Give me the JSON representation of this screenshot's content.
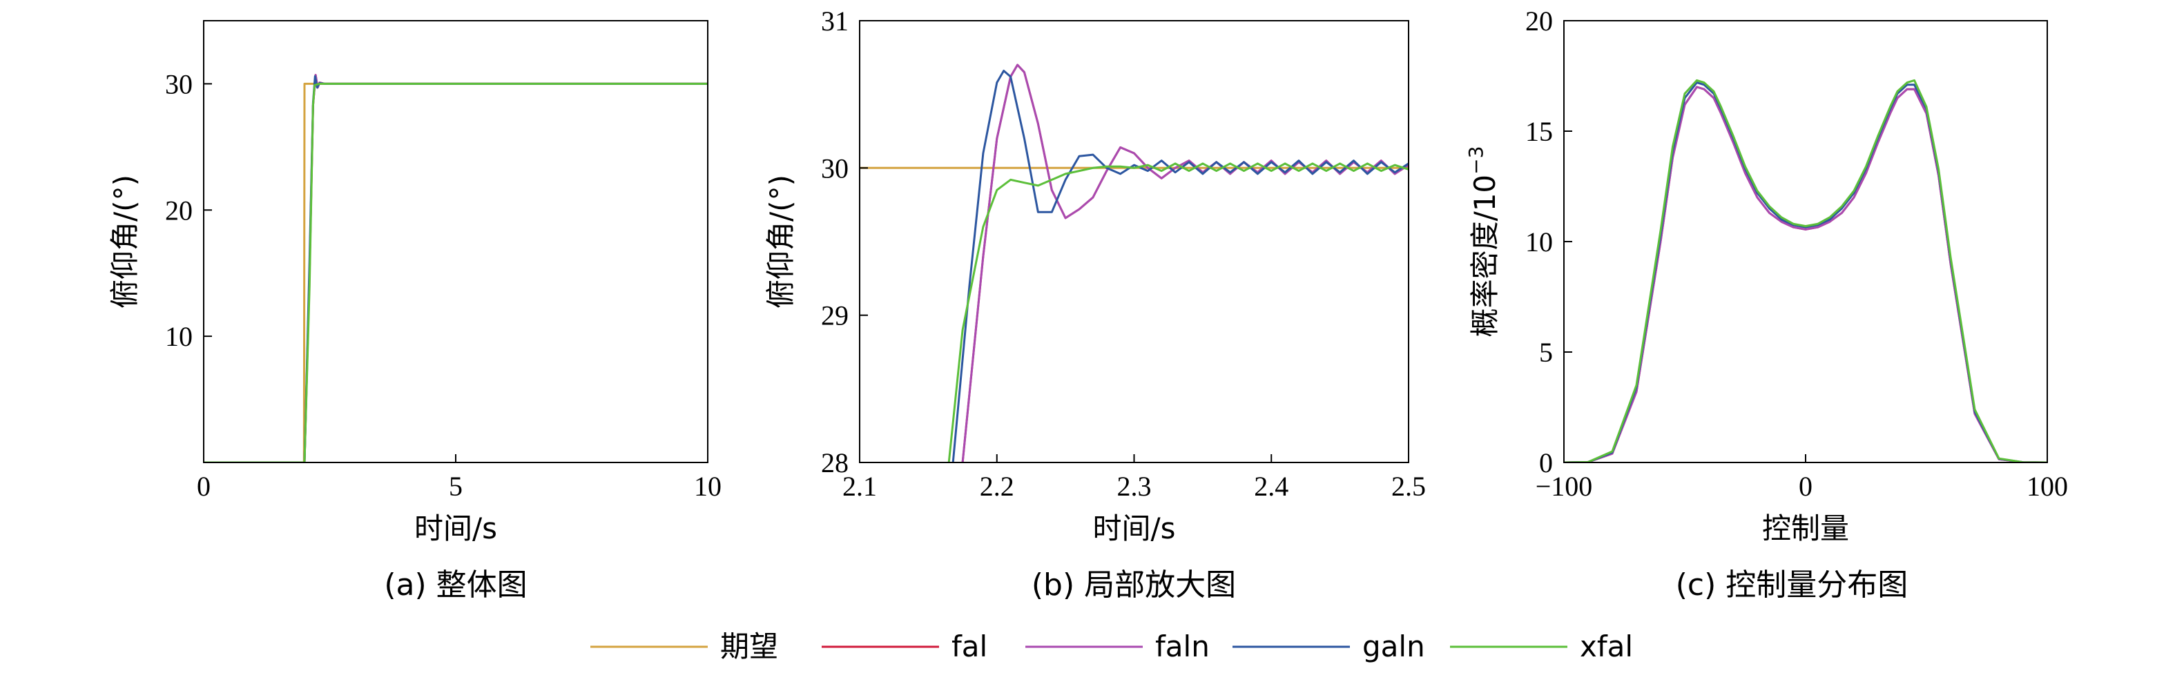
{
  "colors": {
    "期望": "#D4A340",
    "fal": "#D01C3C",
    "faln": "#A94AB0",
    "galn": "#2C56A0",
    "xfal": "#5CBF3A"
  },
  "legend": [
    "期望",
    "fal",
    "faln",
    "galn",
    "xfal"
  ],
  "chart_data": [
    {
      "type": "line",
      "caption": "(a) 整体图",
      "xlabel": "时间/s",
      "ylabel": "俯仰角/(°)",
      "xlim": [
        0,
        10
      ],
      "ylim": [
        0,
        35
      ],
      "xticks": [
        0,
        5,
        10
      ],
      "yticks": [
        10,
        20,
        30
      ],
      "series": [
        {
          "name": "期望",
          "x": [
            0,
            1.99,
            2.0,
            10
          ],
          "y": [
            0,
            0,
            30,
            30
          ]
        },
        {
          "name": "fal",
          "x": [
            0,
            2.0,
            2.1,
            2.17,
            2.22,
            2.26,
            2.3,
            2.4,
            10
          ],
          "y": [
            0,
            0,
            15,
            28.3,
            30.7,
            29.7,
            30.1,
            30.0,
            30.0
          ]
        },
        {
          "name": "faln",
          "x": [
            0,
            2.0,
            2.1,
            2.17,
            2.22,
            2.26,
            2.3,
            2.4,
            10
          ],
          "y": [
            0,
            0,
            15,
            28.3,
            30.7,
            29.7,
            30.1,
            30.0,
            30.0
          ]
        },
        {
          "name": "galn",
          "x": [
            0,
            2.0,
            2.1,
            2.17,
            2.21,
            2.25,
            2.3,
            2.4,
            10
          ],
          "y": [
            0,
            0,
            16,
            28.5,
            30.6,
            29.7,
            30.05,
            30.0,
            30.0
          ]
        },
        {
          "name": "xfal",
          "x": [
            0,
            2.0,
            2.1,
            2.17,
            2.2,
            2.25,
            2.3,
            10
          ],
          "y": [
            0,
            0,
            14,
            28.3,
            29.9,
            29.95,
            30.0,
            30.0
          ]
        }
      ]
    },
    {
      "type": "line",
      "caption": "(b) 局部放大图",
      "xlabel": "时间/s",
      "ylabel": "俯仰角/(°)",
      "xlim": [
        2.1,
        2.5
      ],
      "ylim": [
        28,
        31
      ],
      "xticks": [
        2.1,
        2.2,
        2.3,
        2.4,
        2.5
      ],
      "yticks": [
        28,
        29,
        30,
        31
      ],
      "series": [
        {
          "name": "期望",
          "x": [
            2.1,
            2.5
          ],
          "y": [
            30,
            30
          ]
        },
        {
          "name": "fal",
          "x": [
            2.175,
            2.19,
            2.2,
            2.21,
            2.215,
            2.22,
            2.23,
            2.24,
            2.25,
            2.26,
            2.27,
            2.28,
            2.29,
            2.3,
            2.31,
            2.32,
            2.33,
            2.34,
            2.35,
            2.36,
            2.37,
            2.38,
            2.39,
            2.4,
            2.41,
            2.42,
            2.43,
            2.44,
            2.45,
            2.46,
            2.47,
            2.48,
            2.49,
            2.5
          ],
          "y": [
            28,
            29.4,
            30.2,
            30.62,
            30.7,
            30.65,
            30.3,
            29.85,
            29.66,
            29.72,
            29.8,
            29.98,
            30.14,
            30.1,
            30.0,
            29.93,
            30.0,
            30.05,
            29.97,
            30.04,
            29.96,
            30.04,
            29.97,
            30.05,
            29.96,
            30.04,
            29.97,
            30.05,
            29.96,
            30.04,
            29.97,
            30.05,
            29.96,
            30.02
          ]
        },
        {
          "name": "faln",
          "x": [
            2.175,
            2.19,
            2.2,
            2.21,
            2.215,
            2.22,
            2.23,
            2.24,
            2.25,
            2.26,
            2.27,
            2.28,
            2.29,
            2.3,
            2.31,
            2.32,
            2.33,
            2.34,
            2.35,
            2.36,
            2.37,
            2.38,
            2.39,
            2.4,
            2.41,
            2.42,
            2.43,
            2.44,
            2.45,
            2.46,
            2.47,
            2.48,
            2.49,
            2.5
          ],
          "y": [
            28,
            29.4,
            30.2,
            30.62,
            30.7,
            30.65,
            30.3,
            29.85,
            29.66,
            29.72,
            29.8,
            29.98,
            30.14,
            30.1,
            30.0,
            29.93,
            30.0,
            30.05,
            29.97,
            30.04,
            29.96,
            30.04,
            29.97,
            30.05,
            29.96,
            30.04,
            29.97,
            30.05,
            29.96,
            30.04,
            29.97,
            30.05,
            29.96,
            30.02
          ]
        },
        {
          "name": "galn",
          "x": [
            2.168,
            2.18,
            2.19,
            2.2,
            2.205,
            2.21,
            2.22,
            2.23,
            2.24,
            2.25,
            2.26,
            2.27,
            2.28,
            2.29,
            2.3,
            2.31,
            2.32,
            2.33,
            2.34,
            2.35,
            2.36,
            2.37,
            2.38,
            2.39,
            2.4,
            2.41,
            2.42,
            2.43,
            2.44,
            2.45,
            2.46,
            2.47,
            2.48,
            2.49,
            2.5
          ],
          "y": [
            28,
            29.2,
            30.1,
            30.58,
            30.66,
            30.62,
            30.2,
            29.7,
            29.7,
            29.92,
            30.08,
            30.09,
            30.0,
            29.96,
            30.02,
            29.98,
            30.05,
            29.97,
            30.04,
            29.96,
            30.04,
            29.97,
            30.04,
            29.96,
            30.04,
            29.97,
            30.05,
            29.96,
            30.04,
            29.97,
            30.05,
            29.96,
            30.04,
            29.97,
            30.03
          ]
        },
        {
          "name": "xfal",
          "x": [
            2.165,
            2.175,
            2.19,
            2.2,
            2.21,
            2.22,
            2.23,
            2.24,
            2.25,
            2.26,
            2.27,
            2.28,
            2.29,
            2.3,
            2.31,
            2.32,
            2.33,
            2.34,
            2.35,
            2.36,
            2.37,
            2.38,
            2.39,
            2.4,
            2.41,
            2.42,
            2.43,
            2.44,
            2.45,
            2.46,
            2.47,
            2.48,
            2.49,
            2.5
          ],
          "y": [
            28,
            28.9,
            29.6,
            29.85,
            29.92,
            29.9,
            29.88,
            29.92,
            29.96,
            29.98,
            30.0,
            30.01,
            30.01,
            30.0,
            30.02,
            29.98,
            30.03,
            29.98,
            30.03,
            29.98,
            30.03,
            29.98,
            30.03,
            29.98,
            30.03,
            29.98,
            30.03,
            29.98,
            30.03,
            29.98,
            30.03,
            29.98,
            30.02,
            29.99
          ]
        }
      ]
    },
    {
      "type": "line",
      "caption": "(c) 控制量分布图",
      "xlabel": "控制量",
      "ylabel": "概率密度/10",
      "ylabel_sup": "−3",
      "xlim": [
        -100,
        100
      ],
      "ylim": [
        0,
        20
      ],
      "xticks": [
        -100,
        0,
        100
      ],
      "yticks": [
        0,
        5,
        10,
        15,
        20
      ],
      "xtick_labels": [
        "−100",
        "0",
        "100"
      ],
      "series": [
        {
          "name": "fal",
          "x": [
            -100,
            -90,
            -80,
            -70,
            -60,
            -55,
            -50,
            -45,
            -42,
            -38,
            -35,
            -30,
            -25,
            -20,
            -15,
            -10,
            -5,
            0,
            5,
            10,
            15,
            20,
            25,
            30,
            35,
            38,
            42,
            45,
            50,
            55,
            60,
            70,
            80,
            90,
            100
          ],
          "y": [
            0,
            0.02,
            0.4,
            3.2,
            10.0,
            13.8,
            16.2,
            17.0,
            16.9,
            16.5,
            15.8,
            14.5,
            13.1,
            12.0,
            11.3,
            10.9,
            10.65,
            10.55,
            10.65,
            10.9,
            11.3,
            12.0,
            13.1,
            14.5,
            15.8,
            16.5,
            16.9,
            16.9,
            15.8,
            13.0,
            9.0,
            2.2,
            0.15,
            0.01,
            0
          ]
        },
        {
          "name": "faln",
          "x": [
            -100,
            -90,
            -80,
            -70,
            -60,
            -55,
            -50,
            -45,
            -42,
            -38,
            -35,
            -30,
            -25,
            -20,
            -15,
            -10,
            -5,
            0,
            5,
            10,
            15,
            20,
            25,
            30,
            35,
            38,
            42,
            45,
            50,
            55,
            60,
            70,
            80,
            90,
            100
          ],
          "y": [
            0,
            0.02,
            0.4,
            3.2,
            10.0,
            13.8,
            16.2,
            17.0,
            16.9,
            16.5,
            15.8,
            14.5,
            13.1,
            12.0,
            11.3,
            10.9,
            10.65,
            10.55,
            10.65,
            10.9,
            11.3,
            12.0,
            13.1,
            14.5,
            15.8,
            16.5,
            16.9,
            16.9,
            15.8,
            13.0,
            9.0,
            2.2,
            0.15,
            0.01,
            0
          ]
        },
        {
          "name": "galn",
          "x": [
            -100,
            -90,
            -80,
            -70,
            -60,
            -55,
            -50,
            -45,
            -42,
            -38,
            -35,
            -30,
            -25,
            -20,
            -15,
            -10,
            -5,
            0,
            5,
            10,
            15,
            20,
            25,
            30,
            35,
            38,
            42,
            45,
            50,
            55,
            60,
            70,
            80,
            90,
            100
          ],
          "y": [
            0,
            0.02,
            0.45,
            3.4,
            10.3,
            14.1,
            16.5,
            17.2,
            17.1,
            16.7,
            16.0,
            14.7,
            13.3,
            12.2,
            11.5,
            11.0,
            10.75,
            10.65,
            10.75,
            11.0,
            11.5,
            12.2,
            13.3,
            14.7,
            16.0,
            16.7,
            17.1,
            17.1,
            16.0,
            13.2,
            9.2,
            2.3,
            0.17,
            0.01,
            0
          ]
        },
        {
          "name": "xfal",
          "x": [
            -100,
            -90,
            -80,
            -70,
            -60,
            -55,
            -50,
            -45,
            -42,
            -38,
            -35,
            -30,
            -25,
            -20,
            -15,
            -10,
            -5,
            0,
            5,
            10,
            15,
            20,
            25,
            30,
            35,
            38,
            42,
            45,
            50,
            55,
            60,
            70,
            80,
            90,
            100
          ],
          "y": [
            0,
            0.02,
            0.5,
            3.5,
            10.5,
            14.3,
            16.7,
            17.3,
            17.2,
            16.8,
            16.1,
            14.8,
            13.4,
            12.3,
            11.6,
            11.1,
            10.8,
            10.7,
            10.8,
            11.1,
            11.6,
            12.3,
            13.4,
            14.8,
            16.1,
            16.8,
            17.2,
            17.3,
            16.1,
            13.3,
            9.3,
            2.4,
            0.18,
            0.01,
            0
          ]
        }
      ]
    }
  ]
}
